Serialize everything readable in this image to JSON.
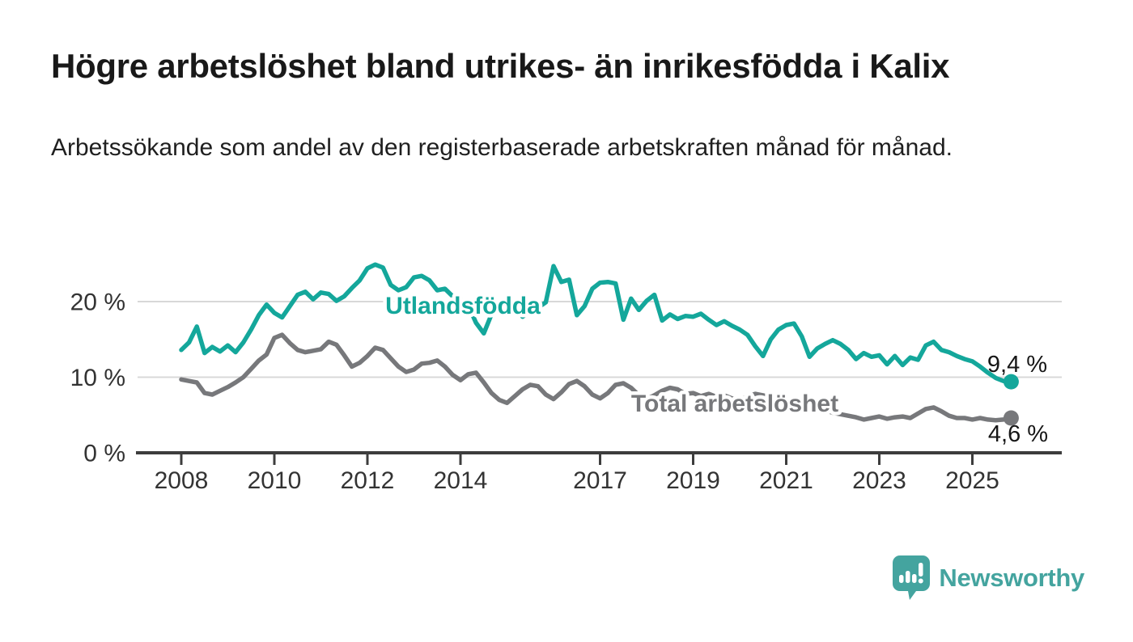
{
  "header": {
    "title": "Högre arbetslöshet bland utrikes- än inrikesfödda i Kalix",
    "subtitle": "Arbetssökande som andel av den registerbaserade arbetskraften månad för månad."
  },
  "footer": {
    "brand": "Newsworthy",
    "logo_icon": "speech-bubble-bar-chart-icon",
    "brand_color": "#44a49f"
  },
  "colors": {
    "background": "#ffffff",
    "grid": "#d8d8d8",
    "axis": "#3d3d3d",
    "axis_text": "#333333",
    "foreign_born_line": "#14a79b",
    "total_line": "#77787b",
    "value_label_text": "#161616"
  },
  "chart_data": {
    "type": "line",
    "title": "Högre arbetslöshet bland utrikes- än inrikesfödda i Kalix",
    "subtitle": "Arbetssökande som andel av den registerbaserade arbetskraften månad för månad.",
    "unit": "%",
    "grid": "horizontal-only",
    "legend_position": "inline-labels-on-lines",
    "x_start_year": 2008,
    "x_step_months": 2,
    "x_end_approx": "2025-10",
    "xlim": [
      2008.0,
      2025.83
    ],
    "ylim": [
      0,
      27
    ],
    "y_ticks": [
      {
        "value": 0,
        "label": "0 %"
      },
      {
        "value": 10,
        "label": "10 %"
      },
      {
        "value": 20,
        "label": "20 %"
      }
    ],
    "x_ticks": [
      {
        "year": 2008,
        "label": "2008"
      },
      {
        "year": 2010,
        "label": "2010"
      },
      {
        "year": 2012,
        "label": "2012"
      },
      {
        "year": 2014,
        "label": "2014"
      },
      {
        "year": 2017,
        "label": "2017"
      },
      {
        "year": 2019,
        "label": "2019"
      },
      {
        "year": 2021,
        "label": "2021"
      },
      {
        "year": 2023,
        "label": "2023"
      },
      {
        "year": 2025,
        "label": "2025"
      }
    ],
    "series": [
      {
        "name": "Utlandsfödda",
        "color": "#14a79b",
        "end_label": "9,4 %",
        "end_value": 9.4,
        "values": [
          13.6,
          14.6,
          16.7,
          13.2,
          14.0,
          13.4,
          14.2,
          13.3,
          14.6,
          16.3,
          18.2,
          19.6,
          18.5,
          17.9,
          19.4,
          20.9,
          21.3,
          20.3,
          21.2,
          21.0,
          20.1,
          20.7,
          21.8,
          22.8,
          24.4,
          24.9,
          24.5,
          22.2,
          21.5,
          21.9,
          23.2,
          23.4,
          22.8,
          21.5,
          21.7,
          20.7,
          20.3,
          19.5,
          17.2,
          15.8,
          18.3,
          19.3,
          18.9,
          19.4,
          18.0,
          18.7,
          19.2,
          19.9,
          24.7,
          22.6,
          22.9,
          18.2,
          19.4,
          21.7,
          22.5,
          22.6,
          22.4,
          17.6,
          20.4,
          18.9,
          20.1,
          20.9,
          17.5,
          18.3,
          17.7,
          18.1,
          18.0,
          18.4,
          17.6,
          16.9,
          17.4,
          16.8,
          16.3,
          15.6,
          14.1,
          12.8,
          15.0,
          16.3,
          16.9,
          17.1,
          15.4,
          12.7,
          13.8,
          14.4,
          14.9,
          14.4,
          13.6,
          12.4,
          13.2,
          12.7,
          12.9,
          11.7,
          12.8,
          11.6,
          12.6,
          12.3,
          14.2,
          14.7,
          13.6,
          13.3,
          12.8,
          12.4,
          12.1,
          11.4,
          10.6,
          9.9,
          9.5,
          9.4
        ]
      },
      {
        "name": "Total arbetslöshet",
        "color": "#77787b",
        "end_label": "4,6 %",
        "end_value": 4.6,
        "values": [
          9.7,
          9.5,
          9.3,
          7.9,
          7.7,
          8.2,
          8.7,
          9.3,
          10.0,
          11.1,
          12.2,
          13.0,
          15.2,
          15.6,
          14.5,
          13.6,
          13.3,
          13.5,
          13.7,
          14.7,
          14.3,
          12.9,
          11.4,
          11.9,
          12.8,
          13.9,
          13.6,
          12.5,
          11.4,
          10.7,
          11.0,
          11.8,
          11.9,
          12.2,
          11.4,
          10.3,
          9.6,
          10.4,
          10.6,
          9.3,
          7.9,
          7.0,
          6.6,
          7.5,
          8.4,
          9.0,
          8.8,
          7.7,
          7.1,
          8.0,
          9.1,
          9.5,
          8.8,
          7.7,
          7.2,
          7.9,
          9.0,
          9.2,
          8.6,
          7.6,
          7.1,
          7.6,
          8.2,
          8.6,
          8.4,
          7.8,
          7.9,
          7.5,
          7.8,
          7.4,
          7.6,
          7.2,
          7.0,
          7.4,
          7.8,
          7.6,
          7.3,
          7.0,
          6.8,
          6.6,
          6.4,
          6.1,
          5.9,
          5.6,
          5.3,
          5.1,
          4.9,
          4.7,
          4.4,
          4.6,
          4.8,
          4.5,
          4.7,
          4.8,
          4.6,
          5.2,
          5.8,
          6.0,
          5.5,
          4.9,
          4.6,
          4.6,
          4.4,
          4.6,
          4.4,
          4.3,
          4.4,
          4.6
        ]
      }
    ]
  }
}
